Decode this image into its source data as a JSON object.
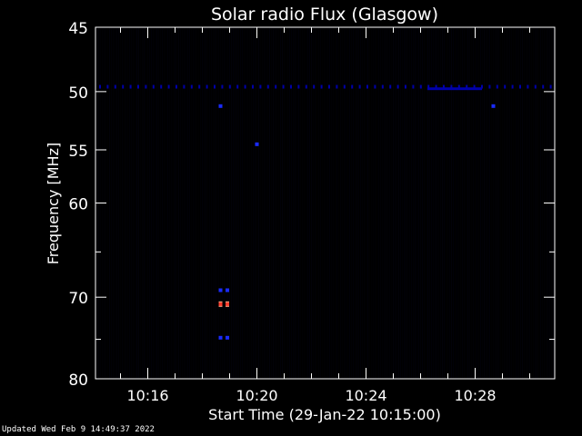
{
  "chart_data": {
    "type": "heatmap",
    "title": "Solar radio Flux (Glasgow)",
    "xlabel": "Start Time (29-Jan-22 10:15:00)",
    "ylabel": "Frequency [MHz]",
    "x_range_minutes": [
      "10:14:05",
      "10:30:55"
    ],
    "x_ticks": [
      "10:16",
      "10:20",
      "10:24",
      "10:28"
    ],
    "y_range": [
      45,
      80
    ],
    "y_ticks": [
      45,
      50,
      55,
      60,
      70,
      80
    ],
    "y_scale": "log",
    "background_color": "#000000",
    "colors": {
      "axis": "#ffffff",
      "band": "#0000aa",
      "burst_low": "#1a2bff",
      "burst_high": "#ff3a2a",
      "burst_edge": "#ffaa88"
    },
    "interference_band": {
      "frequency_mhz": 49.6,
      "time_start": "10:14:05",
      "time_end": "10:30:55"
    },
    "enhanced_segments": [
      {
        "time_start": "10:26:15",
        "time_end": "10:28:15",
        "frequency_mhz": 49.8
      }
    ],
    "features": [
      {
        "time": "10:18:40",
        "frequency_mhz": 51.2,
        "level": "low"
      },
      {
        "time": "10:28:40",
        "frequency_mhz": 51.2,
        "level": "low"
      },
      {
        "time": "10:20:00",
        "frequency_mhz": 54.5,
        "level": "low"
      },
      {
        "time": "10:18:40",
        "frequency_mhz": 69.2,
        "level": "low"
      },
      {
        "time": "10:18:55",
        "frequency_mhz": 69.2,
        "level": "low"
      },
      {
        "time": "10:18:40",
        "frequency_mhz": 70.8,
        "level": "high"
      },
      {
        "time": "10:18:55",
        "frequency_mhz": 70.8,
        "level": "high"
      },
      {
        "time": "10:18:40",
        "frequency_mhz": 74.8,
        "level": "low"
      },
      {
        "time": "10:18:55",
        "frequency_mhz": 74.8,
        "level": "low"
      }
    ]
  },
  "footer": {
    "updated": "Updated Wed Feb  9 14:49:37 2022"
  }
}
